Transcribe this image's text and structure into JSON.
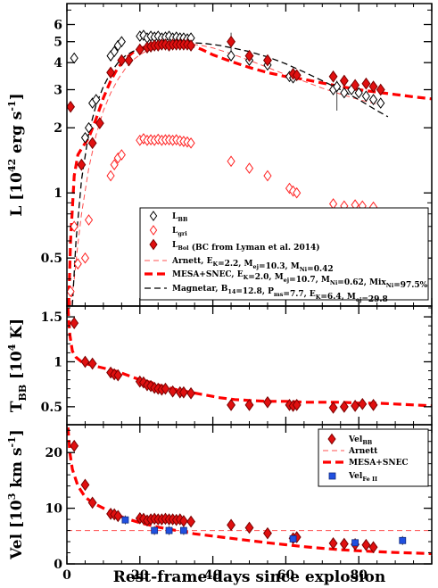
{
  "chart_data": [
    {
      "type": "scatter",
      "panel": "luminosity",
      "ylabel": "L [10^42 erg s^-1]",
      "ylabel_parts": [
        "L [10",
        "42",
        " erg s",
        "-1",
        "]"
      ],
      "yscale": "log",
      "ylim": [
        0.3,
        7.5
      ],
      "xlim": [
        0,
        100
      ],
      "yticks": [
        0.5,
        1,
        2,
        3,
        4,
        5,
        6
      ],
      "ytick_labels": [
        "0.5",
        "1",
        "2",
        "3",
        "4",
        "5",
        "6"
      ],
      "legend_position": "lower-right",
      "series": [
        {
          "name": "L_BB",
          "label_main": "L",
          "label_sub": "BB",
          "marker": "diamond-open",
          "color": "#000000",
          "x": [
            2,
            5,
            6,
            7,
            8,
            12,
            13,
            14,
            15,
            20,
            21,
            22,
            23,
            24,
            25,
            26,
            27,
            28,
            29,
            30,
            31,
            32,
            33,
            34,
            45,
            50,
            55,
            61,
            62,
            63,
            73,
            74,
            76,
            78,
            80,
            82,
            84,
            86
          ],
          "y": [
            4.2,
            1.8,
            2.0,
            2.6,
            2.7,
            4.3,
            4.5,
            4.8,
            5.0,
            5.3,
            5.35,
            5.2,
            5.3,
            5.25,
            5.3,
            5.2,
            5.25,
            5.3,
            5.2,
            5.25,
            5.2,
            5.2,
            5.15,
            5.2,
            4.3,
            4.1,
            3.9,
            3.45,
            3.4,
            3.5,
            3.0,
            3.1,
            2.9,
            3.0,
            2.9,
            2.8,
            2.7,
            2.6
          ]
        },
        {
          "name": "L_gri",
          "label_main": "L",
          "label_sub": "gri",
          "marker": "diamond-open",
          "color": "#ff2020",
          "x": [
            1,
            2,
            3,
            5,
            6,
            12,
            13,
            14,
            15,
            20,
            21,
            22,
            23,
            24,
            25,
            26,
            27,
            28,
            29,
            30,
            31,
            32,
            33,
            34,
            45,
            50,
            55,
            61,
            62,
            63,
            73,
            76,
            79,
            81,
            84
          ],
          "y": [
            0.35,
            0.7,
            0.47,
            0.5,
            0.75,
            1.2,
            1.35,
            1.45,
            1.5,
            1.75,
            1.78,
            1.75,
            1.76,
            1.75,
            1.77,
            1.75,
            1.76,
            1.76,
            1.75,
            1.76,
            1.74,
            1.73,
            1.72,
            1.7,
            1.4,
            1.3,
            1.2,
            1.05,
            1.02,
            1.0,
            0.89,
            0.87,
            0.88,
            0.87,
            0.86
          ]
        },
        {
          "name": "L_Bol (BC from Lyman et al. 2014)",
          "label_main": "L",
          "label_sub": "Bol",
          "label_rest": " (BC from Lyman et al. 2014)",
          "marker": "diamond-filled",
          "color": "#e01010",
          "x": [
            1,
            4,
            7,
            9,
            12,
            15,
            17,
            20,
            22,
            23,
            24,
            25,
            26,
            27,
            28,
            29,
            30,
            31,
            32,
            33,
            34,
            45,
            50,
            55,
            62,
            63,
            73,
            76,
            79,
            82,
            84,
            86
          ],
          "y": [
            2.5,
            1.35,
            1.7,
            2.1,
            3.6,
            4.1,
            4.1,
            4.6,
            4.7,
            4.75,
            4.8,
            4.8,
            4.85,
            4.85,
            4.8,
            4.85,
            4.85,
            4.85,
            4.85,
            4.85,
            4.8,
            5.0,
            4.3,
            4.1,
            3.55,
            3.5,
            3.45,
            3.3,
            3.15,
            3.2,
            3.1,
            3.0
          ]
        }
      ],
      "models": [
        {
          "name": "Arnett, E_K=2.2, M_ej=10.3, M_Ni=0.42",
          "style": "thin-dashed",
          "color": "#ff5050",
          "x": [
            1,
            2,
            3,
            4,
            6,
            8,
            10,
            12,
            14,
            16,
            18,
            20,
            22,
            25,
            28,
            31,
            34,
            37,
            40,
            45,
            50,
            55,
            60,
            65,
            70,
            75,
            80,
            85
          ],
          "y": [
            0.3,
            0.4,
            0.58,
            0.8,
            1.3,
            1.85,
            2.4,
            2.9,
            3.35,
            3.75,
            4.1,
            4.35,
            4.55,
            4.75,
            4.85,
            4.9,
            4.88,
            4.8,
            4.68,
            4.4,
            4.1,
            3.8,
            3.52,
            3.28,
            3.05,
            2.86,
            2.7,
            2.57
          ]
        },
        {
          "name": "MESA+SNEC, E_K=2.0, M_ej=10.7, M_Ni=0.62, Mix_Ni=97.5%",
          "style": "thick-dashed",
          "color": "#ff0000",
          "x": [
            0.5,
            1,
            2,
            3,
            4,
            6,
            8,
            10,
            12,
            14,
            16,
            18,
            20,
            22,
            25,
            28,
            31,
            34,
            37,
            40,
            45,
            50,
            55,
            60,
            65,
            70,
            75,
            80,
            85,
            90,
            95,
            100
          ],
          "y": [
            0.3,
            0.6,
            1.2,
            1.5,
            1.6,
            1.8,
            2.2,
            2.75,
            3.3,
            3.8,
            4.15,
            4.45,
            4.65,
            4.75,
            4.8,
            4.85,
            4.85,
            4.8,
            4.6,
            4.35,
            4.05,
            3.8,
            3.6,
            3.45,
            3.35,
            3.22,
            3.1,
            3.0,
            2.92,
            2.85,
            2.78,
            2.72
          ]
        },
        {
          "name": "Magnetar, B_14=12.8, P_ms=7.7, E_K=6.4, M_ej=29.8",
          "style": "dashed",
          "color": "#000000",
          "x": [
            1.5,
            2.5,
            4,
            6,
            8,
            10,
            12,
            14,
            16,
            18,
            20,
            23,
            26,
            30,
            34,
            38,
            42,
            46,
            50,
            55,
            60,
            65,
            70,
            75,
            80,
            85,
            88
          ],
          "y": [
            0.3,
            0.6,
            1.15,
            1.9,
            2.55,
            3.1,
            3.6,
            4.0,
            4.3,
            4.5,
            4.65,
            4.8,
            4.9,
            4.95,
            4.95,
            4.9,
            4.8,
            4.65,
            4.5,
            4.25,
            3.95,
            3.62,
            3.3,
            3.0,
            2.7,
            2.4,
            2.25
          ]
        }
      ],
      "errorbars": [
        {
          "x": 45,
          "ylo": 4.3,
          "yhi": 5.5
        },
        {
          "x": 34,
          "ylo": 4.6,
          "yhi": 5.3
        },
        {
          "x": 74,
          "ylo": 2.4,
          "yhi": 3.3
        },
        {
          "x": 79,
          "ylo": 3.0,
          "yhi": 3.3
        },
        {
          "x": 62,
          "ylo": 3.35,
          "yhi": 3.75
        }
      ],
      "legend": [
        {
          "label_main": "L",
          "label_sub": "BB",
          "label_rest": ""
        },
        {
          "label_main": "L",
          "label_sub": "gri",
          "label_rest": ""
        },
        {
          "label_main": "L",
          "label_sub": "Bol",
          "label_rest": " (BC from Lyman et al. 2014)"
        },
        {
          "text": "Arnett, E_K=2.2, M_ej=10.3, M_Ni=0.42",
          "rich": [
            [
              "Arnett, E",
              ""
            ],
            [
              "K",
              "sub"
            ],
            [
              "=2.2, M",
              ""
            ],
            [
              "ej",
              "sub"
            ],
            [
              "=10.3, M",
              ""
            ],
            [
              "Ni",
              "sub"
            ],
            [
              "=0.42",
              ""
            ]
          ]
        },
        {
          "text": "MESA+SNEC, E_K=2.0, M_ej=10.7, M_Ni=0.62, Mix_Ni=97.5%",
          "rich": [
            [
              "MESA+SNEC,  E",
              ""
            ],
            [
              "K",
              "sub"
            ],
            [
              "=2.0, M",
              ""
            ],
            [
              "ej",
              "sub"
            ],
            [
              "=10.7, M",
              ""
            ],
            [
              "Ni",
              "sub"
            ],
            [
              "=0.62, Mix",
              ""
            ],
            [
              "Ni",
              "sub"
            ],
            [
              "=97.5%",
              ""
            ]
          ]
        },
        {
          "text": "Magnetar, B_14=12.8, P_ms=7.7, E_K=6.4, M_ej=29.8",
          "rich": [
            [
              "Magnetar, B",
              ""
            ],
            [
              "14",
              "sub"
            ],
            [
              "=12.8, P",
              ""
            ],
            [
              "ms",
              "sub"
            ],
            [
              "=7.7, E",
              ""
            ],
            [
              "K",
              "sub"
            ],
            [
              "=6.4, M",
              ""
            ],
            [
              "ej",
              "sub"
            ],
            [
              "=29.8",
              ""
            ]
          ]
        }
      ]
    },
    {
      "type": "scatter",
      "panel": "temperature",
      "ylabel": "T_BB [10^4 K]",
      "ylabel_parts": [
        "T",
        "BB",
        " [10",
        "4",
        " K]"
      ],
      "ylim": [
        0.3,
        1.62
      ],
      "xlim": [
        0,
        100
      ],
      "yticks": [
        0.5,
        1.0,
        1.5
      ],
      "ytick_labels": [
        "0.5",
        "1",
        "1.5"
      ],
      "series": [
        {
          "name": "T_BB",
          "marker": "diamond-filled",
          "color": "#e01010",
          "x": [
            2,
            5,
            7,
            12,
            13,
            14,
            20,
            21,
            22,
            23,
            24,
            25,
            26,
            27,
            29,
            31,
            32,
            34,
            45,
            50,
            55,
            61,
            62,
            63,
            73,
            76,
            79,
            81,
            84
          ],
          "y": [
            1.43,
            1.0,
            0.98,
            0.88,
            0.86,
            0.85,
            0.78,
            0.77,
            0.74,
            0.73,
            0.71,
            0.7,
            0.69,
            0.7,
            0.67,
            0.66,
            0.66,
            0.65,
            0.52,
            0.52,
            0.55,
            0.52,
            0.51,
            0.52,
            0.49,
            0.5,
            0.51,
            0.53,
            0.52
          ]
        }
      ],
      "models": [
        {
          "name": "MESA+SNEC",
          "style": "thick-dashed",
          "color": "#ff0000",
          "x": [
            0.3,
            0.8,
            1.5,
            2.5,
            4,
            6,
            8,
            10,
            12,
            14,
            16,
            18,
            20,
            23,
            26,
            30,
            34,
            38,
            42,
            46,
            50,
            55,
            60,
            65,
            70,
            75,
            80,
            85,
            90,
            95,
            100
          ],
          "y": [
            1.6,
            1.3,
            1.12,
            1.05,
            1.0,
            0.97,
            0.95,
            0.93,
            0.91,
            0.89,
            0.86,
            0.83,
            0.8,
            0.77,
            0.73,
            0.69,
            0.66,
            0.63,
            0.6,
            0.58,
            0.57,
            0.56,
            0.56,
            0.55,
            0.55,
            0.55,
            0.54,
            0.54,
            0.53,
            0.52,
            0.51
          ]
        }
      ]
    },
    {
      "type": "scatter",
      "panel": "velocity",
      "ylabel": "Vel [10^3 km s^-1]",
      "ylabel_parts": [
        "Vel [10",
        "3",
        " km s",
        "-1",
        "]"
      ],
      "xlabel": "Rest-frame days since explosion",
      "ylim": [
        0,
        25
      ],
      "xlim": [
        0,
        100
      ],
      "yticks": [
        0,
        10,
        20
      ],
      "ytick_labels": [
        "0",
        "10",
        "20"
      ],
      "xticks": [
        0,
        20,
        40,
        60,
        80
      ],
      "xtick_labels": [
        "0",
        "20",
        "40",
        "60",
        "80"
      ],
      "legend_position": "top-right",
      "series": [
        {
          "name": "Vel_BB",
          "label_main": "Vel",
          "label_sub": "BB",
          "marker": "diamond-filled",
          "color": "#e01010",
          "x": [
            2,
            5,
            7,
            12,
            13,
            14,
            20,
            21,
            22,
            23,
            24,
            25,
            26,
            27,
            28,
            29,
            30,
            31,
            32,
            34,
            45,
            50,
            55,
            62,
            63,
            73,
            76,
            79,
            82,
            84
          ],
          "y": [
            21.2,
            14.2,
            11.0,
            9.0,
            8.9,
            8.6,
            8.2,
            8.1,
            7.8,
            8.0,
            8.1,
            8.0,
            8.0,
            8.1,
            8.0,
            8.0,
            7.9,
            8.0,
            7.7,
            7.6,
            7.0,
            6.5,
            5.5,
            4.6,
            4.8,
            3.7,
            3.6,
            3.5,
            3.4,
            3.0
          ]
        },
        {
          "name": "Vel_Fe II",
          "label_main": "Vel",
          "label_sub": "Fe II",
          "marker": "square",
          "color": "#2050e0",
          "x": [
            16,
            24,
            28,
            32,
            62,
            79,
            92
          ],
          "y": [
            7.9,
            6.0,
            6.0,
            6.0,
            4.5,
            3.8,
            4.2
          ]
        }
      ],
      "models": [
        {
          "name": "Arnett",
          "style": "thin-dashed",
          "color": "#ff5050",
          "x": [
            0,
            100
          ],
          "y": [
            6.0,
            6.0
          ]
        },
        {
          "name": "MESA+SNEC",
          "style": "thick-dashed",
          "color": "#ff0000",
          "x": [
            0.3,
            0.8,
            1.5,
            3,
            5,
            7,
            10,
            13,
            16,
            20,
            25,
            30,
            35,
            40,
            45,
            50,
            55,
            60,
            65,
            70,
            75,
            80,
            85,
            90,
            95,
            100
          ],
          "y": [
            24.5,
            20.0,
            17.0,
            14.0,
            12.0,
            11.0,
            10.0,
            9.0,
            8.2,
            7.4,
            6.6,
            6.0,
            5.4,
            5.0,
            4.6,
            4.2,
            3.8,
            3.45,
            3.1,
            2.8,
            2.55,
            2.35,
            2.2,
            2.05,
            1.95,
            1.85
          ]
        }
      ],
      "errorbars": [
        {
          "x": 16,
          "ylo": 7.1,
          "yhi": 8.7
        },
        {
          "x": 24,
          "ylo": 5.2,
          "yhi": 6.8
        },
        {
          "x": 28,
          "ylo": 5.2,
          "yhi": 6.8
        },
        {
          "x": 32,
          "ylo": 5.2,
          "yhi": 6.8
        },
        {
          "x": 62,
          "ylo": 3.7,
          "yhi": 5.3
        },
        {
          "x": 79,
          "ylo": 3.0,
          "yhi": 4.6
        },
        {
          "x": 92,
          "ylo": 3.4,
          "yhi": 5.0
        }
      ],
      "legend": [
        {
          "label_main": "Vel",
          "label_sub": "BB",
          "label_rest": ""
        },
        {
          "text": "Arnett",
          "rich": [
            [
              "Arnett",
              ""
            ]
          ]
        },
        {
          "text": "MESA+SNEC",
          "rich": [
            [
              "MESA+SNEC",
              ""
            ]
          ]
        },
        {
          "label_main": "Vel",
          "label_sub": "Fe II",
          "label_rest": ""
        }
      ]
    }
  ]
}
